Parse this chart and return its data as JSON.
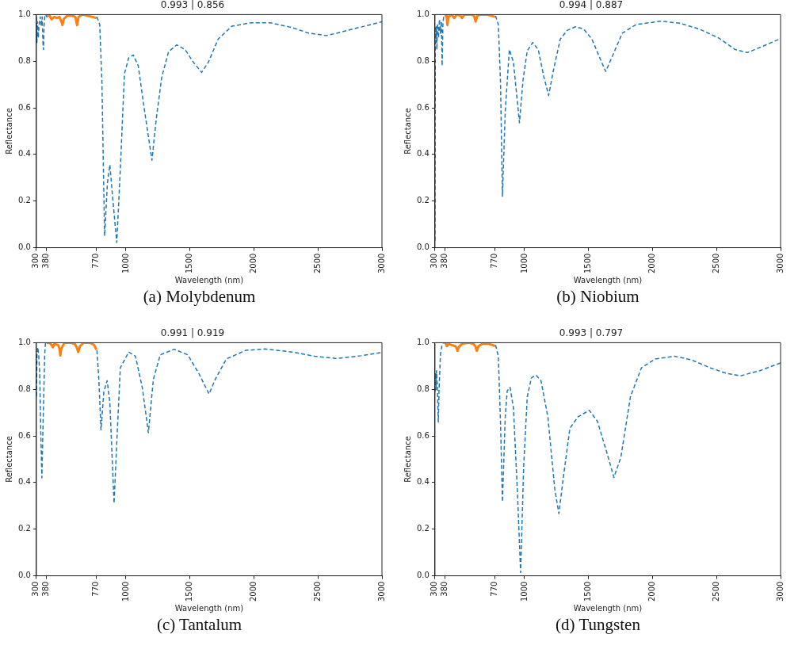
{
  "chart_data": [
    {
      "type": "line",
      "title": "0.993 | 0.856",
      "xlabel": "Wavelength (nm)",
      "ylabel": "Reflectance",
      "annotations": [
        "(a) Molybdenum"
      ],
      "xlim": [
        300,
        3000
      ],
      "ylim": [
        0,
        1
      ],
      "xticks": [
        300,
        380,
        770,
        1000,
        1500,
        2000,
        2500,
        3000
      ],
      "yticks": [
        {
          "value": 0,
          "label": "0.0"
        },
        {
          "value": 0.2,
          "label": "0.2"
        },
        {
          "value": 0.4,
          "label": "0.4"
        },
        {
          "value": 0.6,
          "label": "0.6"
        },
        {
          "value": 0.8,
          "label": "0.8"
        },
        {
          "value": 1,
          "label": "1.0"
        }
      ],
      "series": [
        {
          "color": "#1f77b4",
          "line_style": "dashed",
          "x": [
            300,
            304,
            309,
            315,
            322,
            330,
            338,
            345,
            352,
            356,
            360,
            365,
            372,
            380,
            575,
            773,
            795,
            812,
            833,
            855,
            874,
            896,
            928,
            956,
            988,
            1021,
            1057,
            1096,
            1139,
            1203,
            1236,
            1279,
            1332,
            1397,
            1462,
            1526,
            1591,
            1644,
            1720,
            1827,
            1978,
            2128,
            2300,
            2430,
            2569,
            2731,
            2860,
            3000
          ],
          "values": [
            0.99,
            0.88,
            0.97,
            0.9,
            0.96,
            0.99,
            0.95,
            0.99,
            0.87,
            0.85,
            0.95,
            0.99,
            1.0,
            0.99,
            null,
            0.99,
            0.957,
            0.71,
            0.05,
            0.276,
            0.356,
            0.214,
            0.022,
            0.338,
            0.746,
            0.814,
            0.827,
            0.78,
            0.61,
            0.375,
            0.55,
            0.73,
            0.84,
            0.87,
            0.85,
            0.796,
            0.752,
            0.796,
            0.895,
            0.95,
            0.965,
            0.965,
            0.944,
            0.92,
            0.91,
            0.932,
            0.95,
            0.969
          ]
        },
        {
          "color": "#ff7f0e",
          "line_style": "solid",
          "x": [
            380,
            400,
            418,
            440,
            460,
            480,
            495,
            504,
            512,
            540,
            580,
            605,
            618,
            630,
            660,
            700,
            740,
            770
          ],
          "values": [
            0.99,
            1.0,
            0.98,
            0.99,
            0.985,
            0.99,
            0.97,
            0.955,
            0.98,
            0.995,
            0.995,
            0.99,
            0.955,
            0.99,
            1.0,
            0.995,
            0.99,
            0.985
          ]
        }
      ]
    },
    {
      "type": "line",
      "title": "0.994 | 0.887",
      "xlabel": "Wavelength (nm)",
      "ylabel": "Reflectance",
      "annotations": [
        "(b) Niobium"
      ],
      "xlim": [
        300,
        3000
      ],
      "ylim": [
        0,
        1
      ],
      "xticks": [
        300,
        380,
        770,
        1000,
        1500,
        2000,
        2500,
        3000
      ],
      "yticks": [
        {
          "value": 0,
          "label": "0.0"
        },
        {
          "value": 0.2,
          "label": "0.2"
        },
        {
          "value": 0.4,
          "label": "0.4"
        },
        {
          "value": 0.6,
          "label": "0.6"
        },
        {
          "value": 0.8,
          "label": "0.8"
        },
        {
          "value": 1,
          "label": "1.0"
        }
      ],
      "series": [
        {
          "color": "#1f77b4",
          "line_style": "dashed",
          "x": [
            300,
            303,
            306,
            310,
            315,
            320,
            328,
            335,
            342,
            350,
            356,
            362,
            368,
            380,
            575,
            773,
            795,
            812,
            827,
            849,
            881,
            913,
            960,
            988,
            1021,
            1064,
            1107,
            1150,
            1188,
            1225,
            1279,
            1333,
            1397,
            1462,
            1526,
            1591,
            1634,
            1677,
            1763,
            1870,
            2064,
            2214,
            2365,
            2516,
            2645,
            2741,
            2860,
            3000
          ],
          "values": [
            0.03,
            0.95,
            0.88,
            0.95,
            0.85,
            0.96,
            0.9,
            0.98,
            0.92,
            0.97,
            0.78,
            0.96,
            0.99,
            0.99,
            null,
            0.995,
            0.957,
            0.71,
            0.22,
            0.585,
            0.85,
            0.796,
            0.536,
            0.72,
            0.845,
            0.88,
            0.85,
            0.734,
            0.653,
            0.76,
            0.895,
            0.932,
            0.948,
            0.938,
            0.895,
            0.81,
            0.756,
            0.81,
            0.92,
            0.957,
            0.972,
            0.963,
            0.938,
            0.9,
            0.85,
            0.837,
            0.864,
            0.897
          ]
        },
        {
          "color": "#ff7f0e",
          "line_style": "solid",
          "x": [
            380,
            390,
            397,
            405,
            430,
            450,
            470,
            500,
            511,
            530,
            580,
            605,
            618,
            630,
            660,
            700,
            740,
            770
          ],
          "values": [
            0.99,
            1.0,
            0.955,
            0.99,
            1.0,
            0.985,
            1.0,
            0.995,
            0.985,
            1.0,
            1.0,
            0.995,
            0.97,
            0.995,
            1.0,
            1.0,
            0.995,
            0.99
          ]
        }
      ]
    },
    {
      "type": "line",
      "title": "0.991 | 0.919",
      "xlabel": "Wavelength (nm)",
      "ylabel": "Reflectance",
      "annotations": [
        "(c) Tantalum"
      ],
      "xlim": [
        300,
        3000
      ],
      "ylim": [
        0,
        1
      ],
      "xticks": [
        300,
        380,
        770,
        1000,
        1500,
        2000,
        2500,
        3000
      ],
      "yticks": [
        {
          "value": 0,
          "label": "0.0"
        },
        {
          "value": 0.2,
          "label": "0.2"
        },
        {
          "value": 0.4,
          "label": "0.4"
        },
        {
          "value": 0.6,
          "label": "0.6"
        },
        {
          "value": 0.8,
          "label": "0.8"
        },
        {
          "value": 1,
          "label": "1.0"
        }
      ],
      "series": [
        {
          "color": "#1f77b4",
          "line_style": "dashed",
          "x": [
            300,
            305,
            311,
            318,
            326,
            335,
            343,
            350,
            358,
            365,
            371,
            380,
            575,
            773,
            788,
            805,
            827,
            853,
            874,
            907,
            930,
            956,
            1021,
            1074,
            1128,
            1175,
            1214,
            1268,
            1376,
            1483,
            1569,
            1649,
            1698,
            1784,
            1935,
            2085,
            2300,
            2473,
            2645,
            2838,
            3000
          ],
          "values": [
            0.77,
            0.95,
            0.98,
            0.95,
            0.87,
            0.6,
            0.42,
            0.6,
            0.78,
            0.95,
            1.0,
            1.0,
            null,
            0.967,
            0.843,
            0.626,
            0.79,
            0.837,
            0.744,
            0.311,
            0.595,
            0.892,
            0.96,
            0.942,
            0.806,
            0.614,
            0.843,
            0.948,
            0.972,
            0.948,
            0.868,
            0.78,
            0.843,
            0.93,
            0.967,
            0.973,
            0.96,
            0.942,
            0.932,
            0.944,
            0.958
          ]
        },
        {
          "color": "#ff7f0e",
          "line_style": "solid",
          "x": [
            380,
            400,
            420,
            429,
            440,
            470,
            480,
            487,
            495,
            520,
            560,
            600,
            615,
            627,
            640,
            670,
            720,
            750,
            770
          ],
          "values": [
            1.0,
            1.0,
            0.99,
            0.98,
            0.995,
            0.99,
            0.975,
            0.945,
            0.975,
            1.0,
            1.0,
            0.995,
            0.98,
            0.96,
            0.985,
            1.0,
            1.0,
            0.99,
            0.97
          ]
        }
      ]
    },
    {
      "type": "line",
      "title": "0.993 | 0.797",
      "xlabel": "Wavelength (nm)",
      "ylabel": "Reflectance",
      "annotations": [
        "(d) Tungsten"
      ],
      "xlim": [
        300,
        3000
      ],
      "ylim": [
        0,
        1
      ],
      "xticks": [
        300,
        380,
        770,
        1000,
        1500,
        2000,
        2500,
        3000
      ],
      "yticks": [
        {
          "value": 0,
          "label": "0.0"
        },
        {
          "value": 0.2,
          "label": "0.2"
        },
        {
          "value": 0.4,
          "label": "0.4"
        },
        {
          "value": 0.6,
          "label": "0.6"
        },
        {
          "value": 0.8,
          "label": "0.8"
        },
        {
          "value": 1,
          "label": "1.0"
        }
      ],
      "series": [
        {
          "color": "#1f77b4",
          "line_style": "dashed",
          "x": [
            300,
            304,
            308,
            312,
            318,
            326,
            332,
            343,
            355,
            365,
            380,
            575,
            773,
            795,
            812,
            827,
            849,
            864,
            887,
            913,
            945,
            969,
            993,
            1021,
            1053,
            1089,
            1128,
            1182,
            1236,
            1268,
            1300,
            1354,
            1418,
            1505,
            1569,
            1634,
            1698,
            1752,
            1827,
            1913,
            2021,
            2171,
            2300,
            2451,
            2580,
            2688,
            2838,
            3000
          ],
          "values": [
            0.79,
            0.87,
            0.8,
            0.88,
            0.82,
            0.66,
            0.8,
            0.95,
            0.99,
            1.0,
            1.0,
            null,
            0.99,
            0.942,
            0.657,
            0.317,
            0.682,
            0.793,
            0.808,
            0.72,
            0.348,
            0.014,
            0.47,
            0.768,
            0.849,
            0.861,
            0.837,
            0.682,
            0.372,
            0.267,
            0.41,
            0.633,
            0.682,
            0.71,
            0.663,
            0.545,
            0.422,
            0.508,
            0.768,
            0.892,
            0.93,
            0.942,
            0.927,
            0.892,
            0.868,
            0.858,
            0.88,
            0.913
          ]
        },
        {
          "color": "#ff7f0e",
          "line_style": "solid",
          "x": [
            380,
            393,
            405,
            430,
            460,
            470,
            476,
            485,
            510,
            560,
            600,
            615,
            627,
            640,
            670,
            720,
            750,
            770
          ],
          "values": [
            1.0,
            0.985,
            0.995,
            0.99,
            0.985,
            0.975,
            0.965,
            0.98,
            0.995,
            1.0,
            0.995,
            0.985,
            0.965,
            0.985,
            0.995,
            0.995,
            0.99,
            0.985
          ]
        }
      ]
    }
  ]
}
